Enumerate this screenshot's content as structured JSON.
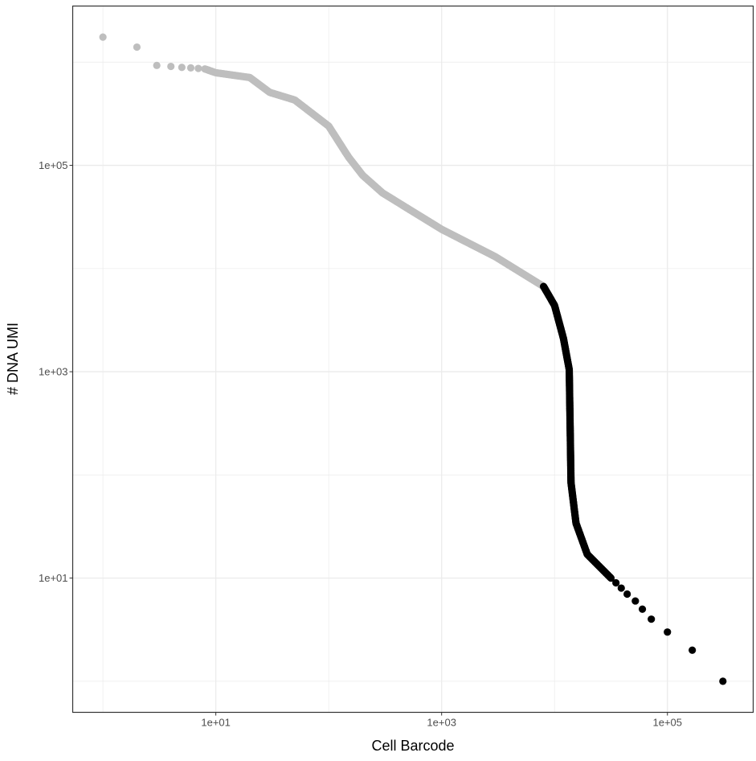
{
  "chart_data": {
    "type": "scatter",
    "title": "",
    "xlabel": "Cell Barcode",
    "ylabel": "# DNA UMI",
    "x_scale": "log10",
    "y_scale": "log10",
    "xlim": [
      0.54,
      575000
    ],
    "ylim": [
      0.5,
      3500000
    ],
    "x_ticks": [
      {
        "value": 10,
        "label": "1e+01"
      },
      {
        "value": 1000,
        "label": "1e+03"
      },
      {
        "value": 100000,
        "label": "1e+05"
      }
    ],
    "y_ticks": [
      {
        "value": 10,
        "label": "1e+01"
      },
      {
        "value": 1000,
        "label": "1e+03"
      },
      {
        "value": 100000,
        "label": "1e+05"
      }
    ],
    "grid": true,
    "theme": "bw",
    "colors": {
      "background_cell": "#BEBEBE",
      "cell": "#000000"
    },
    "cell_threshold_rank": 8000,
    "curve": [
      [
        1,
        1750000
      ],
      [
        2,
        1400000
      ],
      [
        3,
        930000
      ],
      [
        4,
        910000
      ],
      [
        5,
        890000
      ],
      [
        6,
        880000
      ],
      [
        7,
        870000
      ],
      [
        8,
        860000
      ],
      [
        10,
        790000
      ],
      [
        20,
        710000
      ],
      [
        30,
        510000
      ],
      [
        50,
        430000
      ],
      [
        100,
        240000
      ],
      [
        150,
        120000
      ],
      [
        200,
        80000
      ],
      [
        300,
        54000
      ],
      [
        1000,
        24000
      ],
      [
        3000,
        13000
      ],
      [
        8000,
        6700
      ],
      [
        10000,
        4400
      ],
      [
        12000,
        2100
      ],
      [
        13500,
        1050
      ],
      [
        14000,
        84
      ],
      [
        15500,
        34
      ],
      [
        19500,
        17
      ],
      [
        31600,
        10
      ]
    ],
    "tail_points": [
      [
        35000,
        9
      ],
      [
        39000,
        8
      ],
      [
        44000,
        7
      ],
      [
        52000,
        6
      ],
      [
        60000,
        5
      ],
      [
        72000,
        4
      ],
      [
        100000,
        3
      ],
      [
        166000,
        2
      ],
      [
        310000,
        1
      ]
    ]
  }
}
